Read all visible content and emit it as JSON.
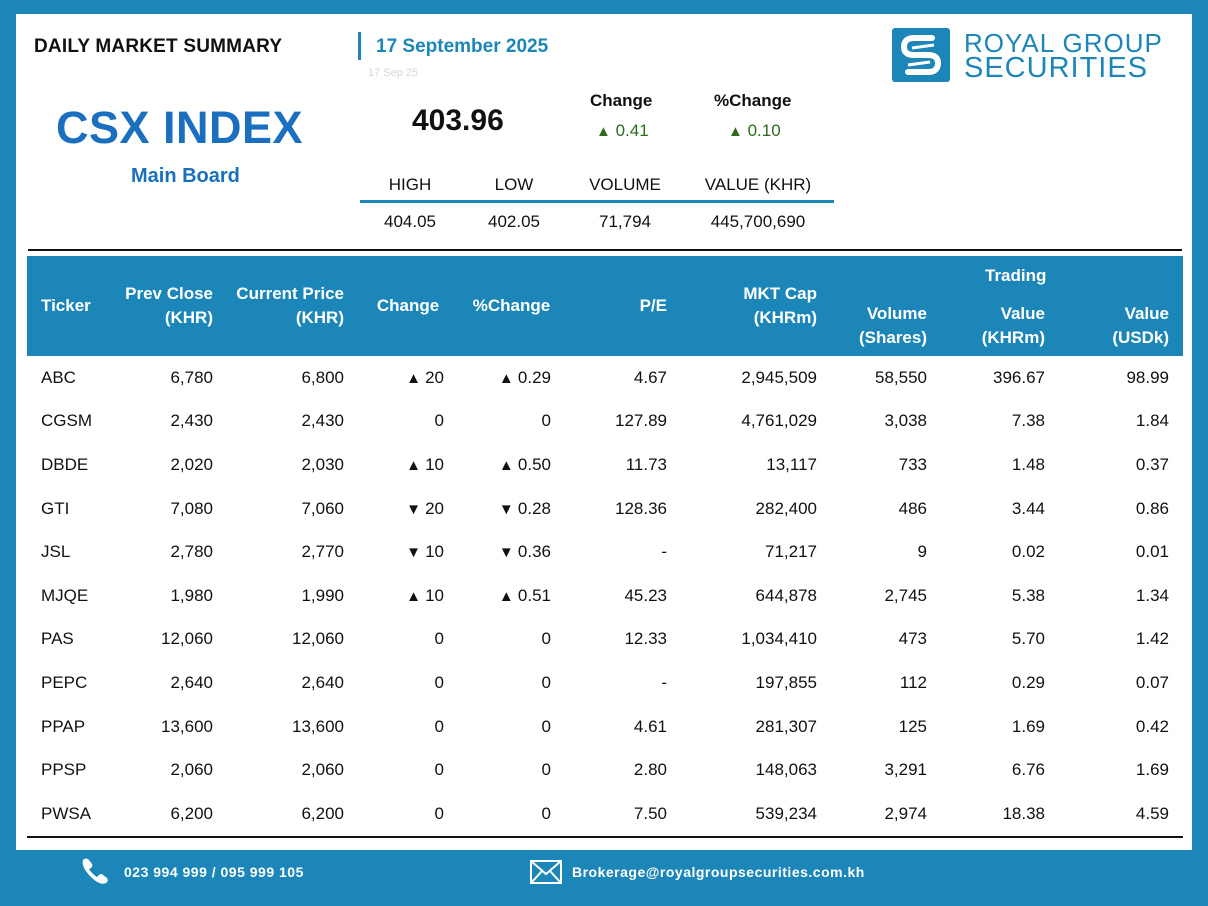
{
  "header": {
    "title": "DAILY MARKET SUMMARY",
    "date": "17 September 2025",
    "date_ghost": "17 Sep 25"
  },
  "logo": {
    "line1": "ROYAL GROUP",
    "line2": "SECURITIES"
  },
  "index": {
    "name": "CSX INDEX",
    "board": "Main Board",
    "value": "403.96",
    "change_label": "Change",
    "change_value": "0.41",
    "pct_change_label": "%Change",
    "pct_change_value": "0.10",
    "summary_headers": [
      "HIGH",
      "LOW",
      "VOLUME",
      "VALUE (KHR)"
    ],
    "summary_values": [
      "404.05",
      "402.05",
      "71,794",
      "445,700,690"
    ]
  },
  "table": {
    "headers": {
      "ticker": "Ticker",
      "prev_close_1": "Prev Close",
      "prev_close_2": "(KHR)",
      "current_price_1": "Current Price",
      "current_price_2": "(KHR)",
      "change": "Change",
      "pct_change": "%Change",
      "pe": "P/E",
      "mktcap_1": "MKT Cap",
      "mktcap_2": "(KHRm)",
      "volume_1": "Volume",
      "volume_2": "(Shares)",
      "trading": "Trading",
      "value_khr_1": "Value",
      "value_khr_2": "(KHRm)",
      "value_usd_1": "Value",
      "value_usd_2": "(USDk)"
    },
    "rows": [
      {
        "ticker": "ABC",
        "prev": "6,780",
        "cur": "6,800",
        "dir": "up",
        "chg": "20",
        "pct": "0.29",
        "pe": "4.67",
        "cap": "2,945,509",
        "vol": "58,550",
        "vkhr": "396.67",
        "vusd": "98.99"
      },
      {
        "ticker": "CGSM",
        "prev": "2,430",
        "cur": "2,430",
        "dir": "none",
        "chg": "0",
        "pct": "0",
        "pe": "127.89",
        "cap": "4,761,029",
        "vol": "3,038",
        "vkhr": "7.38",
        "vusd": "1.84"
      },
      {
        "ticker": "DBDE",
        "prev": "2,020",
        "cur": "2,030",
        "dir": "up",
        "chg": "10",
        "pct": "0.50",
        "pe": "11.73",
        "cap": "13,117",
        "vol": "733",
        "vkhr": "1.48",
        "vusd": "0.37"
      },
      {
        "ticker": "GTI",
        "prev": "7,080",
        "cur": "7,060",
        "dir": "down",
        "chg": "20",
        "pct": "0.28",
        "pe": "128.36",
        "cap": "282,400",
        "vol": "486",
        "vkhr": "3.44",
        "vusd": "0.86"
      },
      {
        "ticker": "JSL",
        "prev": "2,780",
        "cur": "2,770",
        "dir": "down",
        "chg": "10",
        "pct": "0.36",
        "pe": "-",
        "cap": "71,217",
        "vol": "9",
        "vkhr": "0.02",
        "vusd": "0.01"
      },
      {
        "ticker": "MJQE",
        "prev": "1,980",
        "cur": "1,990",
        "dir": "up",
        "chg": "10",
        "pct": "0.51",
        "pe": "45.23",
        "cap": "644,878",
        "vol": "2,745",
        "vkhr": "5.38",
        "vusd": "1.34"
      },
      {
        "ticker": "PAS",
        "prev": "12,060",
        "cur": "12,060",
        "dir": "none",
        "chg": "0",
        "pct": "0",
        "pe": "12.33",
        "cap": "1,034,410",
        "vol": "473",
        "vkhr": "5.70",
        "vusd": "1.42"
      },
      {
        "ticker": "PEPC",
        "prev": "2,640",
        "cur": "2,640",
        "dir": "none",
        "chg": "0",
        "pct": "0",
        "pe": "-",
        "cap": "197,855",
        "vol": "112",
        "vkhr": "0.29",
        "vusd": "0.07"
      },
      {
        "ticker": "PPAP",
        "prev": "13,600",
        "cur": "13,600",
        "dir": "none",
        "chg": "0",
        "pct": "0",
        "pe": "4.61",
        "cap": "281,307",
        "vol": "125",
        "vkhr": "1.69",
        "vusd": "0.42"
      },
      {
        "ticker": "PPSP",
        "prev": "2,060",
        "cur": "2,060",
        "dir": "none",
        "chg": "0",
        "pct": "0",
        "pe": "2.80",
        "cap": "148,063",
        "vol": "3,291",
        "vkhr": "6.76",
        "vusd": "1.69"
      },
      {
        "ticker": "PWSA",
        "prev": "6,200",
        "cur": "6,200",
        "dir": "none",
        "chg": "0",
        "pct": "0",
        "pe": "7.50",
        "cap": "539,234",
        "vol": "2,974",
        "vkhr": "18.38",
        "vusd": "4.59"
      }
    ]
  },
  "footer": {
    "phone": "023 994 999 / 095 999 105",
    "email": "Brokerage@royalgroupsecurities.com.kh",
    "phone_icon": "phone-icon",
    "mail_icon": "mail-icon"
  },
  "colors": {
    "brand_blue": "#1c86b9",
    "title_blue": "#1a6fbf",
    "up_green": "#2e6b1e",
    "down_red": "#c00000"
  }
}
